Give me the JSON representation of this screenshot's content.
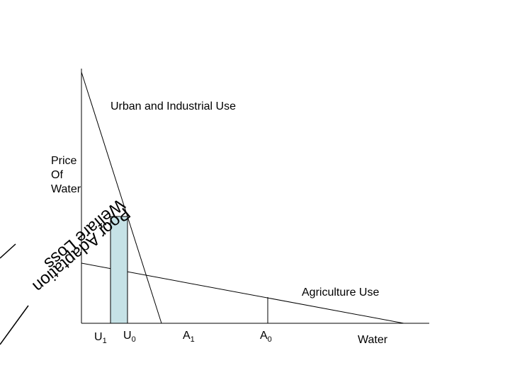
{
  "curves": {
    "urban_label": "Urban and Industrial Use",
    "agriculture_label": "Agriculture Use"
  },
  "axes": {
    "y_label": "Price\nOf\nWater",
    "x_label": "Water"
  },
  "quantities": [
    {
      "letter": "U",
      "sub": "1"
    },
    {
      "letter": "U",
      "sub": "0"
    },
    {
      "letter": "A",
      "sub": "1"
    },
    {
      "letter": "A",
      "sub": "0"
    }
  ],
  "overlay_text": {
    "line1": "Welfare Loss",
    "line2": "Poor Adaptation"
  },
  "colors": {
    "line": "#000000",
    "bar_fill": "#c6e2e6",
    "bar_stroke": "#000000"
  }
}
